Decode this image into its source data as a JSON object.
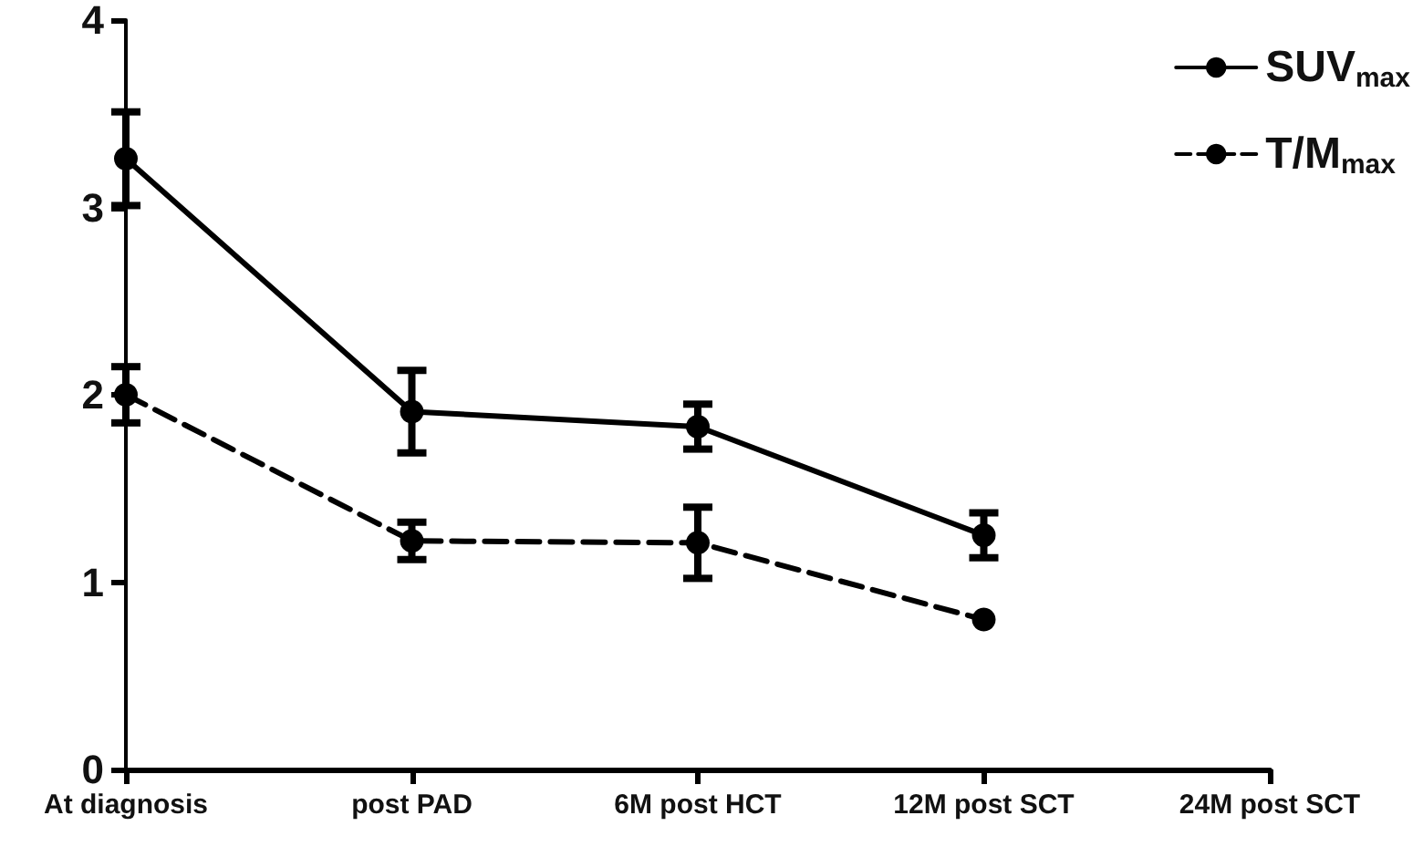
{
  "chart_data": {
    "type": "line",
    "categories": [
      "At diagnosis",
      "post PAD",
      "6M post HCT",
      "12M post SCT",
      "24M post SCT"
    ],
    "series": [
      {
        "name": "SUV$_{max}$",
        "color": "#000000",
        "line_style": "solid",
        "values": [
          3.26,
          1.91,
          1.83,
          1.25,
          null
        ],
        "errors": [
          0.25,
          0.22,
          0.12,
          0.12,
          null
        ]
      },
      {
        "name": "T/M$_{max}$",
        "color": "#000000",
        "line_style": "dashed",
        "values": [
          2.0,
          1.22,
          1.21,
          0.8,
          null
        ],
        "errors": [
          0.15,
          0.1,
          0.19,
          null,
          null
        ]
      }
    ],
    "ylim": [
      0,
      4
    ],
    "yticks": [
      0,
      1,
      2,
      3,
      4
    ],
    "grid": false,
    "legend": "top right",
    "marker": "circle"
  }
}
